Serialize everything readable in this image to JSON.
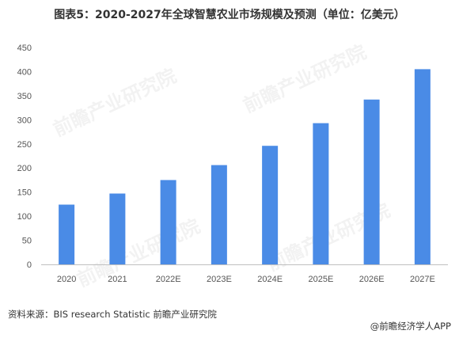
{
  "source": "资料来源：BIS research Statistic 前瞻产业研究院",
  "brand": "@前瞻经济学人APP",
  "watermark": "前瞻产业研究院",
  "colors": {
    "bar": "#4a8be6",
    "axis": "#bfbfbf",
    "grid": "#e8e8e8"
  },
  "chart_data": {
    "type": "bar",
    "title": "图表5：2020-2027年全球智慧农业市场规模及预测（单位：亿美元）",
    "categories": [
      "2020",
      "2021",
      "2022E",
      "2023E",
      "2024E",
      "2025E",
      "2026E",
      "2027E"
    ],
    "values": [
      124,
      147,
      175,
      206,
      246,
      293,
      342,
      405
    ],
    "ylim": [
      0,
      450
    ],
    "yticks": [
      0,
      50,
      100,
      150,
      200,
      250,
      300,
      350,
      400,
      450
    ],
    "xlabel": "",
    "ylabel": "",
    "grid": false,
    "legend": "none"
  }
}
